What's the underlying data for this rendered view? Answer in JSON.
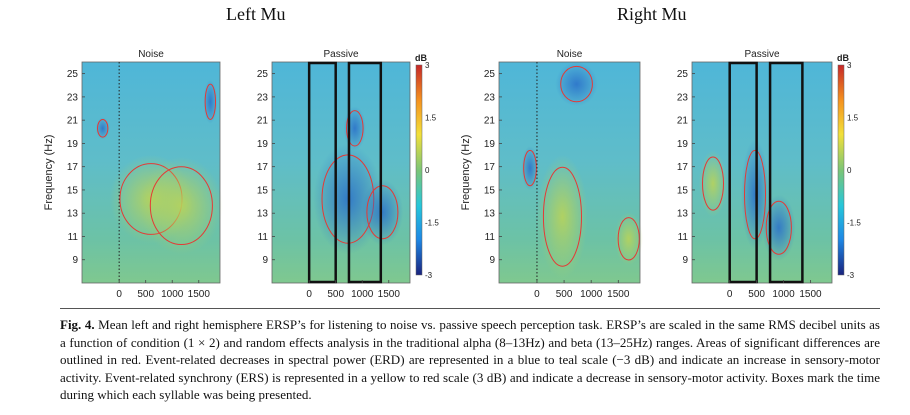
{
  "groups": [
    {
      "title": "Left Mu",
      "panels": [
        {
          "title": "Noise",
          "boxes": []
        },
        {
          "title": "Passive",
          "boxes": [
            [
              0,
              500
            ],
            [
              750,
              1350
            ]
          ]
        }
      ]
    },
    {
      "title": "Right Mu",
      "panels": [
        {
          "title": "Noise",
          "boxes": []
        },
        {
          "title": "Passive",
          "boxes": [
            [
              0,
              500
            ],
            [
              750,
              1350
            ]
          ]
        }
      ]
    }
  ],
  "axes": {
    "ylabel": "Frequency (Hz)",
    "yticks": [
      9,
      11,
      13,
      15,
      17,
      19,
      21,
      23,
      25
    ],
    "ylim": [
      7,
      26
    ],
    "xticks": [
      0,
      500,
      1000,
      1500
    ],
    "xlim": [
      -700,
      1900
    ],
    "onset_ms": 0
  },
  "colorbar": {
    "unit": "dB",
    "ticks": [
      3,
      1.5,
      0,
      -1.5,
      -3
    ],
    "range": [
      -3,
      3
    ],
    "colors": [
      "#1a237e",
      "#1e88e5",
      "#26c6da",
      "#7cc576",
      "#f2e03a",
      "#f5931f",
      "#c62828"
    ]
  },
  "caption": {
    "label": "Fig. 4.",
    "text": "Mean left and right hemisphere ERSP’s for listening to noise vs. passive speech perception task. ERSP’s are scaled in the same RMS decibel units as a function of condition (1 × 2) and random effects analysis in the traditional alpha (8–13Hz) and beta (13–25Hz) ranges. Areas of significant differences are outlined in red. Event-related decreases in spectral power (ERD) are represented in a blue to teal scale (−3 dB) and indicate an increase in sensory-motor activity. Event-related synchrony (ERS) is represented in a yellow to red scale (3 dB) and indicate a decrease in sensory-motor activity. Boxes mark the time during which each syllable was being presented."
  }
}
